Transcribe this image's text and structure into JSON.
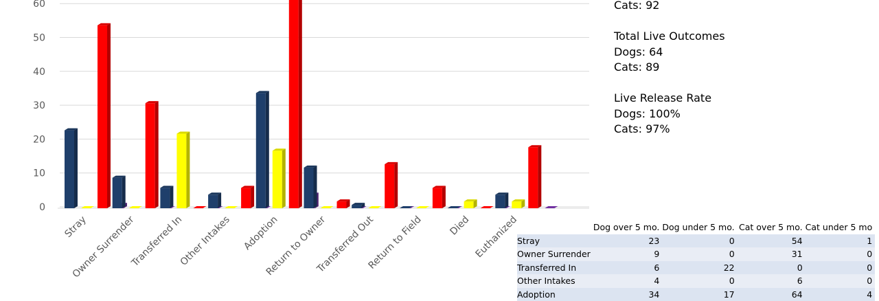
{
  "chart_data": {
    "type": "bar",
    "categories": [
      "Stray",
      "Owner Surrender",
      "Transferred In",
      "Other Intakes",
      "Adoption",
      "Return to Owner",
      "Transferred Out",
      "Return to Field",
      "Died",
      "Euthanized"
    ],
    "series": [
      {
        "name": "Dog over 5 mo.",
        "color": "#1f3f6b",
        "values": [
          23,
          9,
          6,
          4,
          34,
          12,
          1,
          0,
          0,
          4
        ]
      },
      {
        "name": "Dog under 5 mo.",
        "color": "#ffff00",
        "values": [
          0,
          0,
          22,
          0,
          17,
          0,
          0,
          0,
          2,
          2
        ]
      },
      {
        "name": "Cat over 5 mo.",
        "color": "#ff0000",
        "values": [
          54,
          31,
          0,
          6,
          64,
          2,
          13,
          6,
          0,
          18
        ]
      },
      {
        "name": "Cat under 5 mo.",
        "color": "#7030a0",
        "values": [
          1,
          0,
          0,
          0,
          4,
          0,
          0,
          0,
          0,
          0
        ]
      }
    ],
    "ylim": [
      0,
      60
    ],
    "yticks": [
      0,
      10,
      20,
      30,
      40,
      50,
      60
    ],
    "grid": true,
    "legend": "bottom"
  },
  "stats": {
    "cats_total": "Cats: 92",
    "live_outcomes_title": "Total Live Outcomes",
    "live_outcomes_dogs": "Dogs: 64",
    "live_outcomes_cats": "Cats: 89",
    "release_rate_title": "Live Release Rate",
    "release_rate_dogs": "Dogs: 100%",
    "release_rate_cats": "Cats: 97%"
  },
  "table": {
    "headers": [
      "",
      "Dog over 5 mo.",
      "Dog under 5 mo.",
      "Cat over 5 mo.",
      "Cat under 5 mo"
    ],
    "rows": [
      [
        "Stray",
        "23",
        "0",
        "54",
        "1"
      ],
      [
        "Owner Surrender",
        "9",
        "0",
        "31",
        "0"
      ],
      [
        "Transferred In",
        "6",
        "22",
        "0",
        "0"
      ],
      [
        "Other Intakes",
        "4",
        "0",
        "6",
        "0"
      ],
      [
        "Adoption",
        "34",
        "17",
        "64",
        "4"
      ]
    ]
  }
}
